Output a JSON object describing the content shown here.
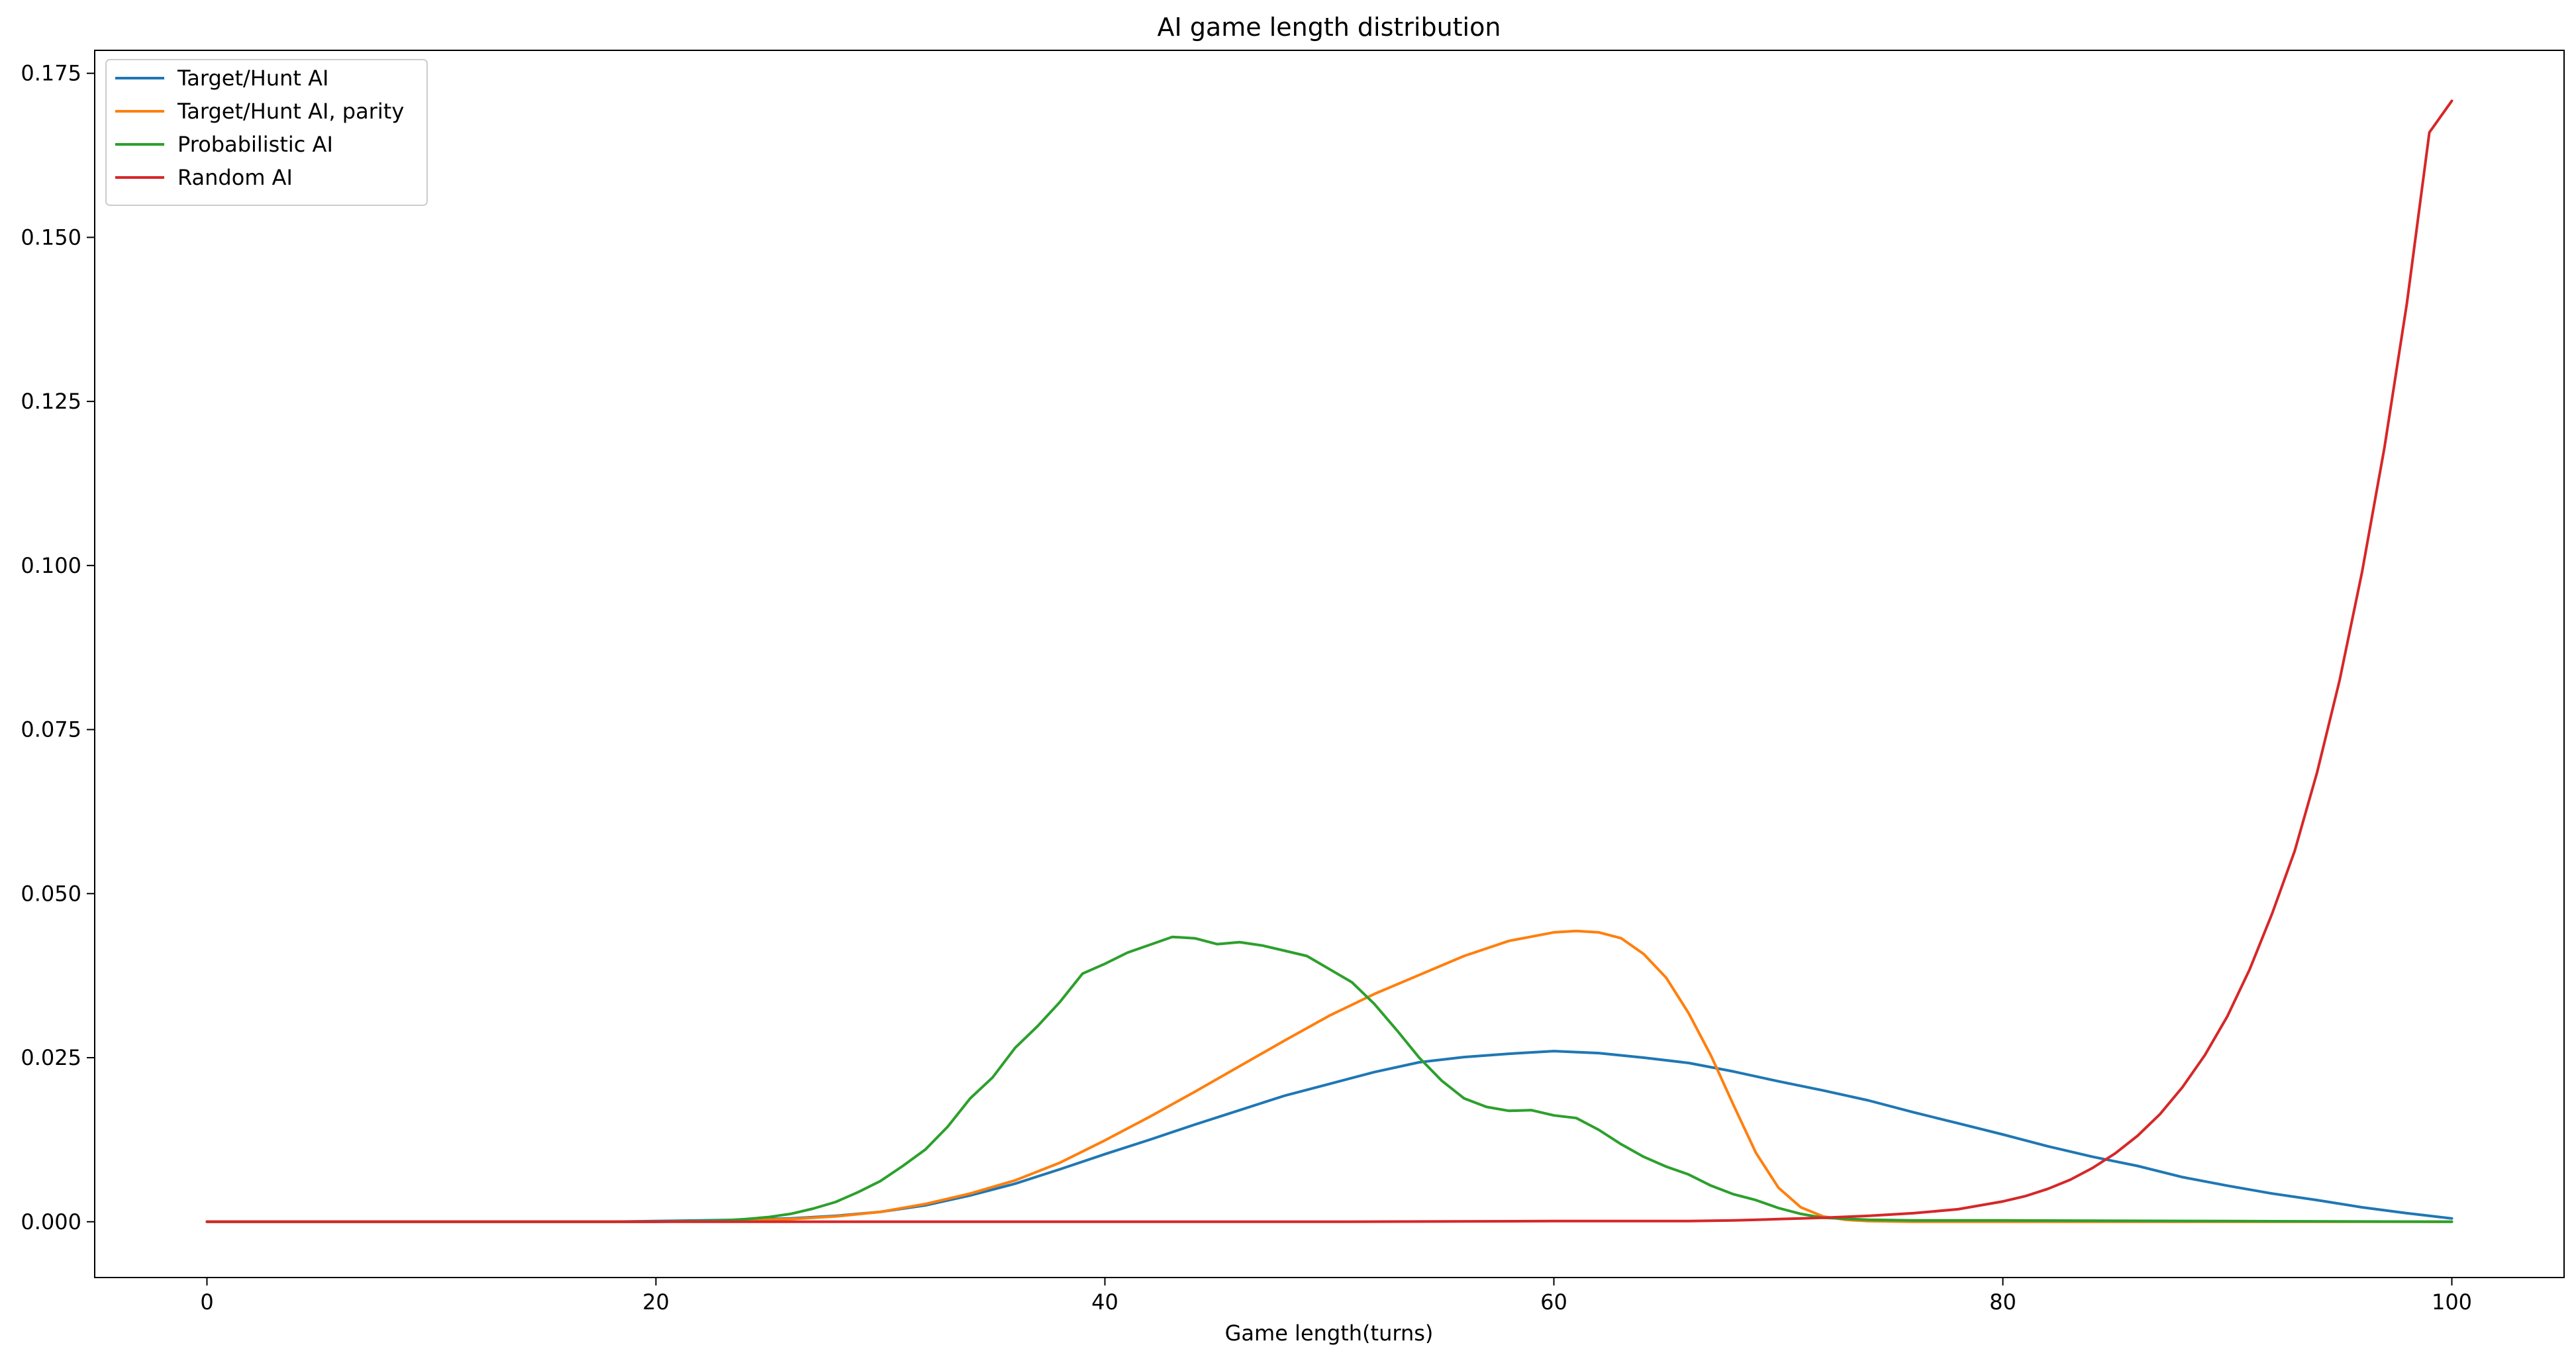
{
  "chart_data": {
    "type": "line",
    "title": "AI game length distribution",
    "xlabel": "Game length(turns)",
    "ylabel": "",
    "xlim": [
      -5,
      105
    ],
    "ylim": [
      -0.0085,
      0.1785
    ],
    "xticks": [
      0,
      20,
      40,
      60,
      80,
      100
    ],
    "xtick_labels": [
      "0",
      "20",
      "40",
      "60",
      "80",
      "100"
    ],
    "yticks": [
      0,
      0.025,
      0.05,
      0.075,
      0.1,
      0.125,
      0.15,
      0.175
    ],
    "ytick_labels": [
      "0.000",
      "0.025",
      "0.050",
      "0.075",
      "0.100",
      "0.125",
      "0.150",
      "0.175"
    ],
    "grid": false,
    "legend_position": "top-left",
    "series": [
      {
        "name": "Target/Hunt AI",
        "color": "#1f77b4",
        "x": [
          0,
          18,
          20,
          22,
          24,
          26,
          28,
          30,
          32,
          34,
          36,
          38,
          40,
          42,
          44,
          46,
          48,
          50,
          52,
          54,
          56,
          58,
          60,
          62,
          64,
          66,
          68,
          70,
          72,
          74,
          76,
          78,
          80,
          82,
          84,
          86,
          88,
          90,
          92,
          94,
          96,
          98,
          100
        ],
        "y": [
          0,
          0,
          0.0001,
          0.0002,
          0.0003,
          0.0005,
          0.0009,
          0.0015,
          0.0025,
          0.004,
          0.0058,
          0.008,
          0.0103,
          0.0125,
          0.0148,
          0.017,
          0.0192,
          0.021,
          0.0228,
          0.0243,
          0.0251,
          0.0256,
          0.026,
          0.0257,
          0.025,
          0.0242,
          0.0229,
          0.0214,
          0.02,
          0.0185,
          0.0167,
          0.015,
          0.0133,
          0.0115,
          0.0099,
          0.0085,
          0.0068,
          0.0055,
          0.0043,
          0.0033,
          0.0022,
          0.0013,
          0.0005
        ]
      },
      {
        "name": "Target/Hunt AI, parity",
        "color": "#ff7f0e",
        "x": [
          0,
          20,
          22,
          24,
          26,
          28,
          30,
          32,
          34,
          36,
          38,
          40,
          42,
          44,
          46,
          48,
          50,
          52,
          54,
          56,
          58,
          60,
          61,
          62,
          63,
          64,
          65,
          66,
          67,
          68,
          69,
          70,
          71,
          72,
          73,
          74,
          76,
          80,
          90,
          100
        ],
        "y": [
          0,
          0,
          0.0001,
          0.0002,
          0.0004,
          0.0008,
          0.0015,
          0.0027,
          0.0043,
          0.0063,
          0.009,
          0.0124,
          0.016,
          0.0198,
          0.0237,
          0.0276,
          0.0314,
          0.0347,
          0.0376,
          0.0405,
          0.0428,
          0.0441,
          0.0443,
          0.0441,
          0.0432,
          0.0408,
          0.0372,
          0.0318,
          0.0253,
          0.0178,
          0.0105,
          0.0052,
          0.0022,
          0.0008,
          0.0003,
          0.0001,
          0,
          0,
          0,
          0
        ]
      },
      {
        "name": "Probabilistic AI",
        "color": "#2ca02c",
        "x": [
          0,
          20,
          22,
          23,
          24,
          25,
          26,
          27,
          28,
          29,
          30,
          31,
          32,
          33,
          34,
          35,
          36,
          37,
          38,
          39,
          40,
          41,
          42,
          43,
          44,
          45,
          46,
          47,
          48,
          49,
          50,
          51,
          52,
          53,
          54,
          55,
          56,
          57,
          58,
          59,
          60,
          61,
          62,
          63,
          64,
          65,
          66,
          67,
          68,
          69,
          70,
          71,
          72,
          74,
          76,
          80,
          90,
          100
        ],
        "y": [
          0,
          0,
          0.0001,
          0.0002,
          0.0004,
          0.0007,
          0.0012,
          0.002,
          0.003,
          0.0045,
          0.0062,
          0.0085,
          0.011,
          0.0145,
          0.0188,
          0.022,
          0.0265,
          0.0298,
          0.0335,
          0.0378,
          0.0393,
          0.041,
          0.0422,
          0.0434,
          0.0432,
          0.0423,
          0.0426,
          0.0421,
          0.0413,
          0.0405,
          0.0385,
          0.0365,
          0.0332,
          0.0292,
          0.025,
          0.0215,
          0.0188,
          0.0175,
          0.0169,
          0.017,
          0.0162,
          0.0158,
          0.014,
          0.0118,
          0.0099,
          0.0084,
          0.0072,
          0.0055,
          0.0042,
          0.0033,
          0.0021,
          0.0012,
          0.0006,
          0.0003,
          0.0002,
          0.0002,
          0.0001,
          0
        ]
      },
      {
        "name": "Random AI",
        "color": "#d62728",
        "x": [
          0,
          40,
          50,
          60,
          64,
          66,
          68,
          70,
          72,
          74,
          76,
          78,
          80,
          81,
          82,
          83,
          84,
          85,
          86,
          87,
          88,
          89,
          90,
          91,
          92,
          93,
          94,
          95,
          96,
          97,
          98,
          99,
          100
        ],
        "y": [
          0,
          0,
          0,
          0.0001,
          0.0001,
          0.0001,
          0.0002,
          0.0004,
          0.0006,
          0.0009,
          0.0013,
          0.0019,
          0.0031,
          0.0039,
          0.005,
          0.0064,
          0.0082,
          0.0104,
          0.0131,
          0.0164,
          0.0205,
          0.0254,
          0.0313,
          0.0385,
          0.047,
          0.0565,
          0.0685,
          0.0825,
          0.099,
          0.118,
          0.14,
          0.166,
          0.1708
        ]
      }
    ]
  }
}
